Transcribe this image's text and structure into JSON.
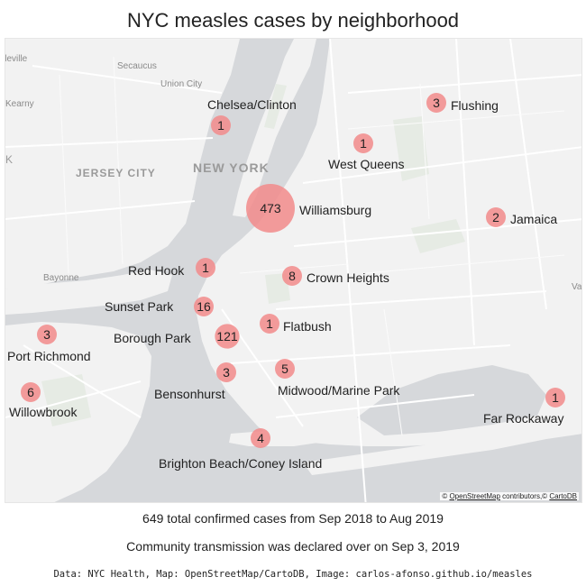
{
  "title": "NYC measles cases by neighborhood",
  "chart_data": {
    "type": "bubble_map",
    "series": [
      {
        "name": "Chelsea/Clinton",
        "value": 1
      },
      {
        "name": "Flushing",
        "value": 3
      },
      {
        "name": "West Queens",
        "value": 1
      },
      {
        "name": "Williamsburg",
        "value": 473
      },
      {
        "name": "Jamaica",
        "value": 2
      },
      {
        "name": "Red Hook",
        "value": 1
      },
      {
        "name": "Crown Heights",
        "value": 8
      },
      {
        "name": "Sunset Park",
        "value": 16
      },
      {
        "name": "Flatbush",
        "value": 1
      },
      {
        "name": "Borough Park",
        "value": 121
      },
      {
        "name": "Port Richmond",
        "value": 3
      },
      {
        "name": "Bensonhurst",
        "value": 3
      },
      {
        "name": "Midwood/Marine Park",
        "value": 5
      },
      {
        "name": "Willowbrook",
        "value": 6
      },
      {
        "name": "Far Rockaway",
        "value": 1
      },
      {
        "name": "Brighton Beach/Coney Island",
        "value": 4
      }
    ],
    "bubble_color": "#f28b8b"
  },
  "basemap_labels": {
    "secaucus": "Secaucus",
    "union_city": "Union City",
    "kearny": "Kearny",
    "jersey_city": "JERSEY CITY",
    "new_york": "NEW YORK",
    "bayonne": "Bayonne",
    "ille": "lleville",
    "k": "K",
    "va": "Va"
  },
  "attribution": {
    "copyright": "©",
    "osm": "OpenStreetMap",
    "contributors": " contributors,©",
    "carto": "CartoDB"
  },
  "captions": {
    "total": "649 total confirmed cases from Sep 2018 to Aug 2019",
    "declared": "Community transmission was declared over on Sep 3, 2019"
  },
  "source": "Data: NYC Health, Map: OpenStreetMap/CartoDB, Image: carlos-afonso.github.io/measles",
  "colors": {
    "water": "#d6d8db",
    "land": "#f2f2f2",
    "park": "#e6ebe4",
    "road": "#ffffff",
    "bubble": "#f28b8b"
  }
}
